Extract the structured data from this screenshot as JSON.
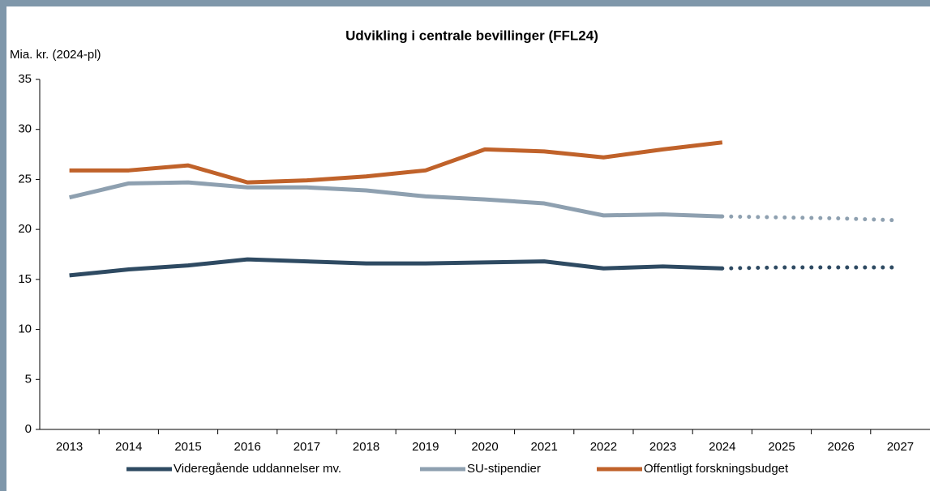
{
  "chart_data": {
    "type": "line",
    "title": "Udvikling i centrale bevillinger (FFL24)",
    "y_label": "Mia. kr. (2024-pl)",
    "categories": [
      "2013",
      "2014",
      "2015",
      "2016",
      "2017",
      "2018",
      "2019",
      "2020",
      "2021",
      "2022",
      "2023",
      "2024",
      "2025",
      "2026",
      "2027"
    ],
    "series": [
      {
        "name": "Videregående uddannelser mv.",
        "color": "#2e4a62",
        "values": [
          15.4,
          16.0,
          16.4,
          17.0,
          16.8,
          16.6,
          16.6,
          16.7,
          16.8,
          16.1,
          16.3,
          16.1,
          16.2,
          16.2,
          16.2
        ]
      },
      {
        "name": "SU-stipendier",
        "color": "#8ea0b0",
        "values": [
          23.2,
          24.6,
          24.7,
          24.2,
          24.2,
          23.9,
          23.3,
          23.0,
          22.6,
          21.4,
          21.5,
          21.3,
          21.2,
          21.1,
          20.9
        ]
      },
      {
        "name": "Offentligt forskningsbudget",
        "color": "#c0622a",
        "values": [
          25.9,
          25.9,
          26.4,
          24.7,
          24.9,
          25.3,
          25.9,
          28.0,
          27.8,
          27.2,
          28.0,
          28.7,
          null,
          null,
          null
        ]
      }
    ],
    "forecast_start_index": 11,
    "ylim": [
      0,
      35
    ],
    "yticks": [
      0,
      5,
      10,
      15,
      20,
      25,
      30,
      35
    ],
    "grid": false,
    "legend": "bottom"
  }
}
